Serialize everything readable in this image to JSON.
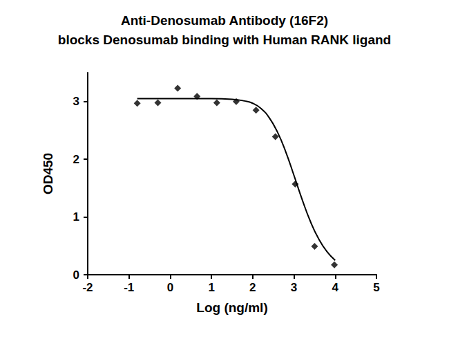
{
  "chart_data": {
    "type": "scatter",
    "title": "Anti-Denosumab Antibody (16F2)\nblocks Denosumab binding with Human RANK ligand",
    "x_label": "Log (ng/ml)",
    "y_label": "OD450",
    "xlim": [
      -2,
      5
    ],
    "xticks": [
      -2,
      -1,
      0,
      1,
      2,
      3,
      4,
      5
    ],
    "ylim": [
      0,
      3.5
    ],
    "yticks": [
      0,
      1,
      2,
      3
    ],
    "grid": false,
    "series": [
      {
        "type": "scatter",
        "marker": "diamond",
        "color": "#000000",
        "x": [
          -0.8,
          -0.3,
          0.18,
          0.65,
          1.13,
          1.6,
          2.08,
          2.55,
          3.03,
          3.5,
          3.98
        ],
        "values": [
          2.97,
          2.98,
          3.23,
          3.09,
          2.98,
          3.0,
          2.85,
          2.39,
          1.57,
          0.49,
          0.17
        ]
      },
      {
        "type": "line",
        "line_style": "solid",
        "color": "#000000",
        "x": [
          -0.8,
          0,
          1.0,
          1.5,
          1.8,
          2.0,
          2.2,
          2.4,
          2.6,
          2.8,
          3.0,
          3.2,
          3.4,
          3.6,
          3.8,
          4.0
        ],
        "values": [
          3.05,
          3.05,
          3.05,
          3.04,
          3.01,
          2.97,
          2.88,
          2.72,
          2.47,
          2.13,
          1.72,
          1.3,
          0.92,
          0.62,
          0.4,
          0.25
        ]
      }
    ]
  }
}
